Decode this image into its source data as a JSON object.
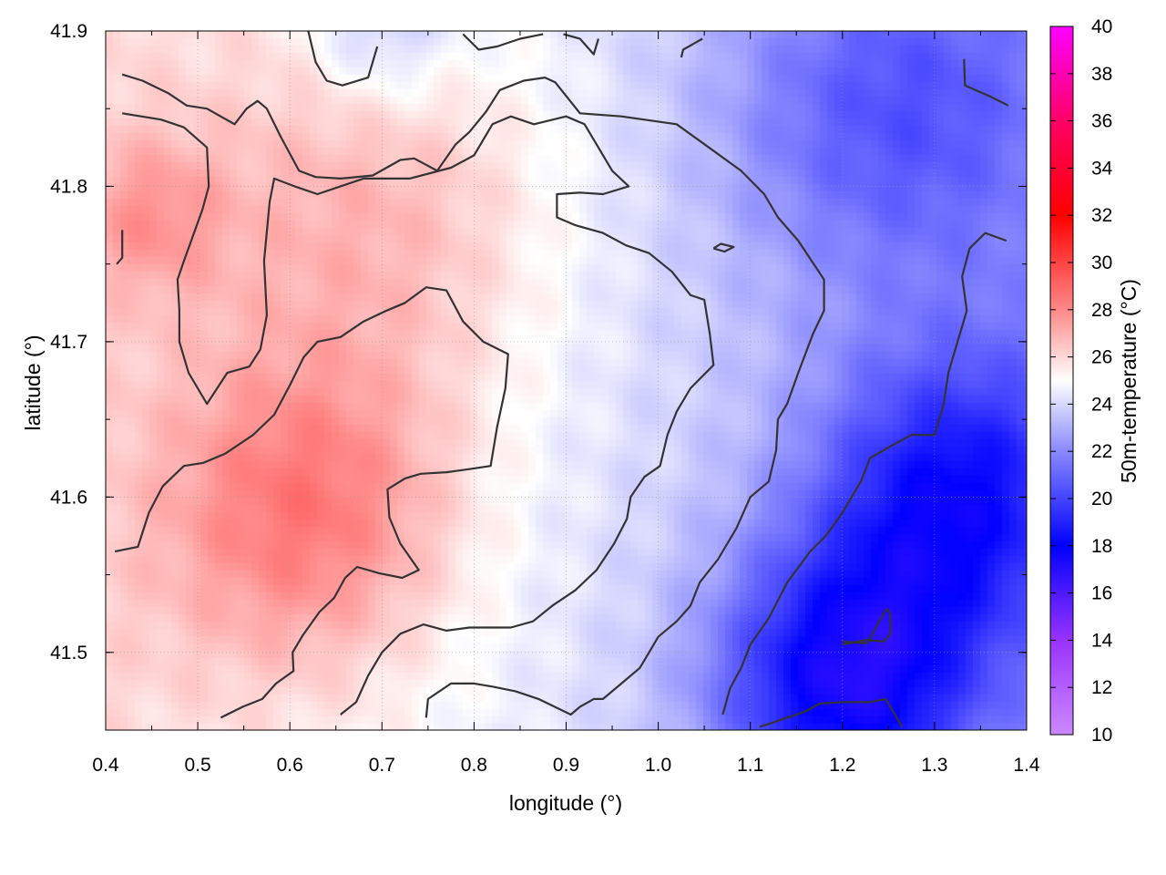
{
  "chart_data": {
    "type": "heatmap",
    "xlabel": "longitude (°)",
    "ylabel": "latitude (°)",
    "colorbar_label": "50m-temperature (°C)",
    "xlim": [
      0.4,
      1.4
    ],
    "ylim": [
      41.45,
      41.9
    ],
    "x_ticks": [
      "0.4",
      "0.5",
      "0.6",
      "0.7",
      "0.8",
      "0.9",
      "1.0",
      "1.1",
      "1.2",
      "1.3",
      "1.4"
    ],
    "y_ticks": [
      "41.5",
      "41.6",
      "41.7",
      "41.8",
      "41.9"
    ],
    "colorbar_range": [
      10,
      40
    ],
    "colorbar_ticks": [
      "10",
      "12",
      "14",
      "16",
      "18",
      "20",
      "22",
      "24",
      "26",
      "28",
      "30",
      "32",
      "34",
      "36",
      "38",
      "40"
    ],
    "colorbar_stops": [
      {
        "value": 10,
        "color": "#cc88ff"
      },
      {
        "value": 14,
        "color": "#9933ff"
      },
      {
        "value": 18,
        "color": "#0000ff"
      },
      {
        "value": 22,
        "color": "#8888ff"
      },
      {
        "value": 25,
        "color": "#ffffff"
      },
      {
        "value": 28,
        "color": "#ff8888"
      },
      {
        "value": 32,
        "color": "#ff0000"
      },
      {
        "value": 36,
        "color": "#ff0066"
      },
      {
        "value": 40,
        "color": "#ff00ff"
      }
    ],
    "grid": true,
    "contour_color": "#333333",
    "warm_centers": [
      {
        "lon": 0.62,
        "lat": 41.59,
        "temp": 27.5,
        "spread": 0.16
      },
      {
        "lon": 0.7,
        "lat": 41.78,
        "temp": 26.2,
        "spread": 0.2
      },
      {
        "lon": 0.45,
        "lat": 41.78,
        "temp": 26.0,
        "spread": 0.08
      }
    ],
    "cool_centers": [
      {
        "lon": 1.2,
        "lat": 41.48,
        "temp": 18.5,
        "spread": 0.14
      },
      {
        "lon": 1.32,
        "lat": 41.6,
        "temp": 19.5,
        "spread": 0.15
      },
      {
        "lon": 1.25,
        "lat": 41.85,
        "temp": 21.5,
        "spread": 0.18
      },
      {
        "lon": 0.7,
        "lat": 41.9,
        "temp": 22.5,
        "spread": 0.08
      }
    ],
    "contours": [
      [
        [
          0.412,
          41.75
        ],
        [
          0.418,
          41.754
        ],
        [
          0.418,
          41.772
        ]
      ],
      [
        [
          0.41,
          41.565
        ],
        [
          0.435,
          41.568
        ],
        [
          0.447,
          41.59
        ],
        [
          0.462,
          41.607
        ],
        [
          0.485,
          41.62
        ],
        [
          0.506,
          41.622
        ],
        [
          0.53,
          41.628
        ],
        [
          0.56,
          41.64
        ],
        [
          0.583,
          41.653
        ],
        [
          0.6,
          41.672
        ],
        [
          0.615,
          41.69
        ],
        [
          0.63,
          41.7
        ],
        [
          0.655,
          41.703
        ],
        [
          0.68,
          41.713
        ],
        [
          0.705,
          41.72
        ],
        [
          0.725,
          41.725
        ],
        [
          0.748,
          41.735
        ],
        [
          0.77,
          41.733
        ],
        [
          0.788,
          41.713
        ],
        [
          0.81,
          41.7
        ],
        [
          0.837,
          41.692
        ],
        [
          0.834,
          41.67
        ],
        [
          0.825,
          41.645
        ],
        [
          0.818,
          41.62
        ],
        [
          0.795,
          41.618
        ],
        [
          0.77,
          41.616
        ],
        [
          0.742,
          41.615
        ],
        [
          0.725,
          41.612
        ],
        [
          0.706,
          41.605
        ],
        [
          0.708,
          41.587
        ],
        [
          0.72,
          41.57
        ],
        [
          0.74,
          41.553
        ],
        [
          0.722,
          41.548
        ],
        [
          0.697,
          41.551
        ],
        [
          0.673,
          41.555
        ],
        [
          0.66,
          41.548
        ],
        [
          0.648,
          41.535
        ],
        [
          0.632,
          41.526
        ],
        [
          0.614,
          41.511
        ],
        [
          0.603,
          41.5
        ],
        [
          0.604,
          41.488
        ],
        [
          0.585,
          41.48
        ],
        [
          0.57,
          41.47
        ],
        [
          0.549,
          41.465
        ],
        [
          0.525,
          41.458
        ]
      ],
      [
        [
          0.655,
          41.46
        ],
        [
          0.672,
          41.468
        ],
        [
          0.685,
          41.485
        ],
        [
          0.7,
          41.5
        ],
        [
          0.72,
          41.512
        ],
        [
          0.745,
          41.518
        ],
        [
          0.77,
          41.514
        ],
        [
          0.795,
          41.516
        ],
        [
          0.84,
          41.516
        ],
        [
          0.864,
          41.52
        ],
        [
          0.885,
          41.53
        ],
        [
          0.91,
          41.54
        ],
        [
          0.933,
          41.553
        ],
        [
          0.952,
          41.57
        ],
        [
          0.966,
          41.586
        ],
        [
          0.97,
          41.6
        ],
        [
          0.985,
          41.613
        ],
        [
          1.002,
          41.62
        ],
        [
          1.01,
          41.64
        ],
        [
          1.02,
          41.655
        ],
        [
          1.035,
          41.67
        ],
        [
          1.06,
          41.685
        ],
        [
          1.056,
          41.705
        ],
        [
          1.05,
          41.727
        ],
        [
          1.035,
          41.73
        ],
        [
          1.015,
          41.745
        ],
        [
          0.99,
          41.757
        ],
        [
          0.965,
          41.762
        ],
        [
          0.94,
          41.77
        ],
        [
          0.91,
          41.775
        ],
        [
          0.89,
          41.78
        ],
        [
          0.89,
          41.795
        ],
        [
          0.915,
          41.796
        ],
        [
          0.94,
          41.795
        ],
        [
          0.968,
          41.8
        ],
        [
          0.95,
          41.81
        ],
        [
          0.935,
          41.825
        ],
        [
          0.92,
          41.84
        ],
        [
          0.9,
          41.845
        ],
        [
          0.865,
          41.84
        ],
        [
          0.84,
          41.845
        ],
        [
          0.82,
          41.84
        ],
        [
          0.8,
          41.82
        ],
        [
          0.775,
          41.812
        ],
        [
          0.73,
          41.805
        ],
        [
          0.68,
          41.805
        ],
        [
          0.63,
          41.795
        ],
        [
          0.605,
          41.8
        ],
        [
          0.583,
          41.805
        ],
        [
          0.578,
          41.79
        ],
        [
          0.572,
          41.752
        ],
        [
          0.575,
          41.717
        ],
        [
          0.568,
          41.695
        ],
        [
          0.556,
          41.684
        ],
        [
          0.532,
          41.68
        ],
        [
          0.51,
          41.66
        ],
        [
          0.49,
          41.68
        ],
        [
          0.48,
          41.7
        ],
        [
          0.48,
          41.72
        ],
        [
          0.478,
          41.74
        ],
        [
          0.485,
          41.752
        ],
        [
          0.505,
          41.785
        ],
        [
          0.512,
          41.8
        ],
        [
          0.51,
          41.825
        ],
        [
          0.485,
          41.838
        ],
        [
          0.46,
          41.843
        ],
        [
          0.418,
          41.847
        ]
      ],
      [
        [
          0.418,
          41.872
        ],
        [
          0.44,
          41.868
        ],
        [
          0.468,
          41.86
        ],
        [
          0.488,
          41.852
        ],
        [
          0.51,
          41.85
        ],
        [
          0.54,
          41.84
        ],
        [
          0.553,
          41.85
        ],
        [
          0.565,
          41.855
        ],
        [
          0.575,
          41.85
        ],
        [
          0.59,
          41.832
        ],
        [
          0.61,
          41.81
        ],
        [
          0.628,
          41.806
        ],
        [
          0.655,
          41.805
        ],
        [
          0.69,
          41.807
        ],
        [
          0.72,
          41.817
        ],
        [
          0.735,
          41.818
        ],
        [
          0.76,
          41.81
        ],
        [
          0.78,
          41.827
        ],
        [
          0.795,
          41.835
        ],
        [
          0.813,
          41.848
        ],
        [
          0.828,
          41.862
        ],
        [
          0.854,
          41.868
        ],
        [
          0.877,
          41.87
        ],
        [
          0.888,
          41.867
        ],
        [
          0.915,
          41.847
        ],
        [
          0.96,
          41.845
        ],
        [
          1.02,
          41.84
        ],
        [
          1.055,
          41.825
        ],
        [
          1.09,
          41.81
        ],
        [
          1.115,
          41.795
        ],
        [
          1.13,
          41.78
        ],
        [
          1.152,
          41.765
        ],
        [
          1.18,
          41.74
        ],
        [
          1.18,
          41.72
        ],
        [
          1.168,
          41.705
        ],
        [
          1.152,
          41.68
        ],
        [
          1.14,
          41.66
        ],
        [
          1.13,
          41.65
        ],
        [
          1.128,
          41.63
        ],
        [
          1.12,
          41.61
        ],
        [
          1.1,
          41.6
        ],
        [
          1.085,
          41.58
        ],
        [
          1.065,
          41.56
        ],
        [
          1.045,
          41.545
        ],
        [
          1.035,
          41.53
        ],
        [
          1.02,
          41.52
        ],
        [
          1.0,
          41.51
        ],
        [
          0.99,
          41.5
        ],
        [
          0.98,
          41.49
        ],
        [
          0.96,
          41.48
        ],
        [
          0.94,
          41.47
        ],
        [
          0.93,
          41.47
        ],
        [
          0.915,
          41.465
        ],
        [
          0.905,
          41.46
        ],
        [
          0.87,
          41.47
        ],
        [
          0.845,
          41.475
        ],
        [
          0.82,
          41.478
        ],
        [
          0.8,
          41.48
        ],
        [
          0.775,
          41.48
        ],
        [
          0.75,
          41.47
        ],
        [
          0.748,
          41.458
        ]
      ],
      [
        [
          0.62,
          41.9
        ],
        [
          0.628,
          41.88
        ],
        [
          0.64,
          41.868
        ],
        [
          0.657,
          41.865
        ],
        [
          0.685,
          41.87
        ],
        [
          0.695,
          41.89
        ]
      ],
      [
        [
          0.788,
          41.898
        ],
        [
          0.805,
          41.888
        ],
        [
          0.825,
          41.89
        ],
        [
          0.85,
          41.895
        ],
        [
          0.875,
          41.898
        ]
      ],
      [
        [
          0.897,
          41.898
        ],
        [
          0.915,
          41.895
        ],
        [
          0.93,
          41.885
        ],
        [
          0.935,
          41.895
        ]
      ],
      [
        [
          1.025,
          41.883
        ],
        [
          1.027,
          41.888
        ],
        [
          1.048,
          41.895
        ]
      ],
      [
        [
          1.06,
          41.76
        ],
        [
          1.068,
          41.763
        ],
        [
          1.082,
          41.761
        ],
        [
          1.072,
          41.758
        ],
        [
          1.06,
          41.76
        ]
      ],
      [
        [
          1.07,
          41.46
        ],
        [
          1.078,
          41.477
        ],
        [
          1.09,
          41.49
        ],
        [
          1.1,
          41.505
        ],
        [
          1.12,
          41.522
        ],
        [
          1.14,
          41.545
        ],
        [
          1.165,
          41.565
        ],
        [
          1.182,
          41.575
        ],
        [
          1.2,
          41.59
        ],
        [
          1.22,
          41.61
        ],
        [
          1.23,
          41.625
        ],
        [
          1.25,
          41.632
        ],
        [
          1.275,
          41.64
        ],
        [
          1.3,
          41.64
        ],
        [
          1.31,
          41.66
        ],
        [
          1.315,
          41.68
        ],
        [
          1.325,
          41.7
        ],
        [
          1.335,
          41.72
        ],
        [
          1.33,
          41.742
        ],
        [
          1.338,
          41.76
        ],
        [
          1.355,
          41.77
        ],
        [
          1.378,
          41.765
        ]
      ],
      [
        [
          1.2,
          41.505
        ],
        [
          1.225,
          41.508
        ],
        [
          1.245,
          41.507
        ],
        [
          1.252,
          41.512
        ],
        [
          1.252,
          41.525
        ],
        [
          1.248,
          41.528
        ],
        [
          1.238,
          41.518
        ],
        [
          1.227,
          41.506
        ],
        [
          1.2,
          41.507
        ]
      ],
      [
        [
          1.11,
          41.452
        ],
        [
          1.125,
          41.455
        ],
        [
          1.14,
          41.458
        ],
        [
          1.16,
          41.462
        ],
        [
          1.175,
          41.467
        ],
        [
          1.2,
          41.468
        ],
        [
          1.23,
          41.468
        ],
        [
          1.247,
          41.47
        ],
        [
          1.265,
          41.452
        ]
      ],
      [
        [
          1.332,
          41.882
        ],
        [
          1.333,
          41.865
        ],
        [
          1.36,
          41.858
        ],
        [
          1.38,
          41.852
        ]
      ]
    ]
  }
}
